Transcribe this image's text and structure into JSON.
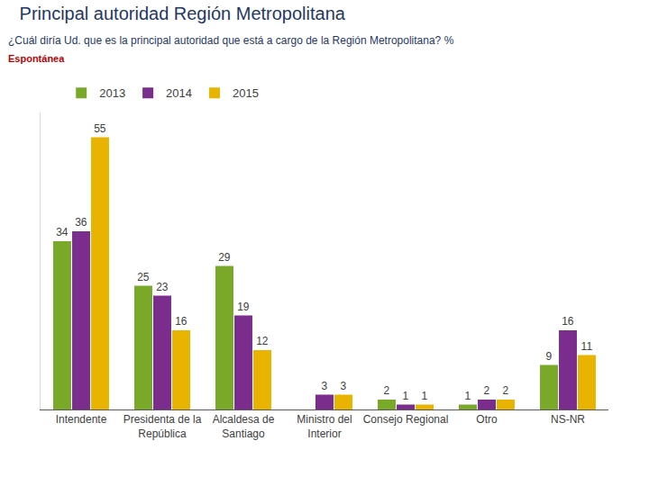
{
  "chart_data": {
    "type": "bar",
    "title": "Principal autoridad Región Metropolitana",
    "subtitle": "¿Cuál diría Ud. que es la principal autoridad que está a cargo de la Región Metropolitana? %",
    "annotations": [
      "Espontánea"
    ],
    "categories": [
      "Intendente",
      "Presidenta de la República",
      "Alcaldesa de Santiago",
      "Ministro del Interior",
      "Consejo Regional",
      "Otro",
      "NS-NR"
    ],
    "series": [
      {
        "name": "2013",
        "color": "#7aa92a",
        "values": [
          34,
          25,
          29,
          null,
          2,
          1,
          9
        ]
      },
      {
        "name": "2014",
        "color": "#7b2d8e",
        "values": [
          36,
          23,
          19,
          3,
          1,
          2,
          16
        ]
      },
      {
        "name": "2015",
        "color": "#e8b400",
        "values": [
          55,
          16,
          12,
          3,
          1,
          2,
          11
        ]
      }
    ],
    "ylim": [
      0,
      60
    ],
    "grid": false,
    "legend": "top left",
    "data_labels": true,
    "tick_labels": "x"
  }
}
